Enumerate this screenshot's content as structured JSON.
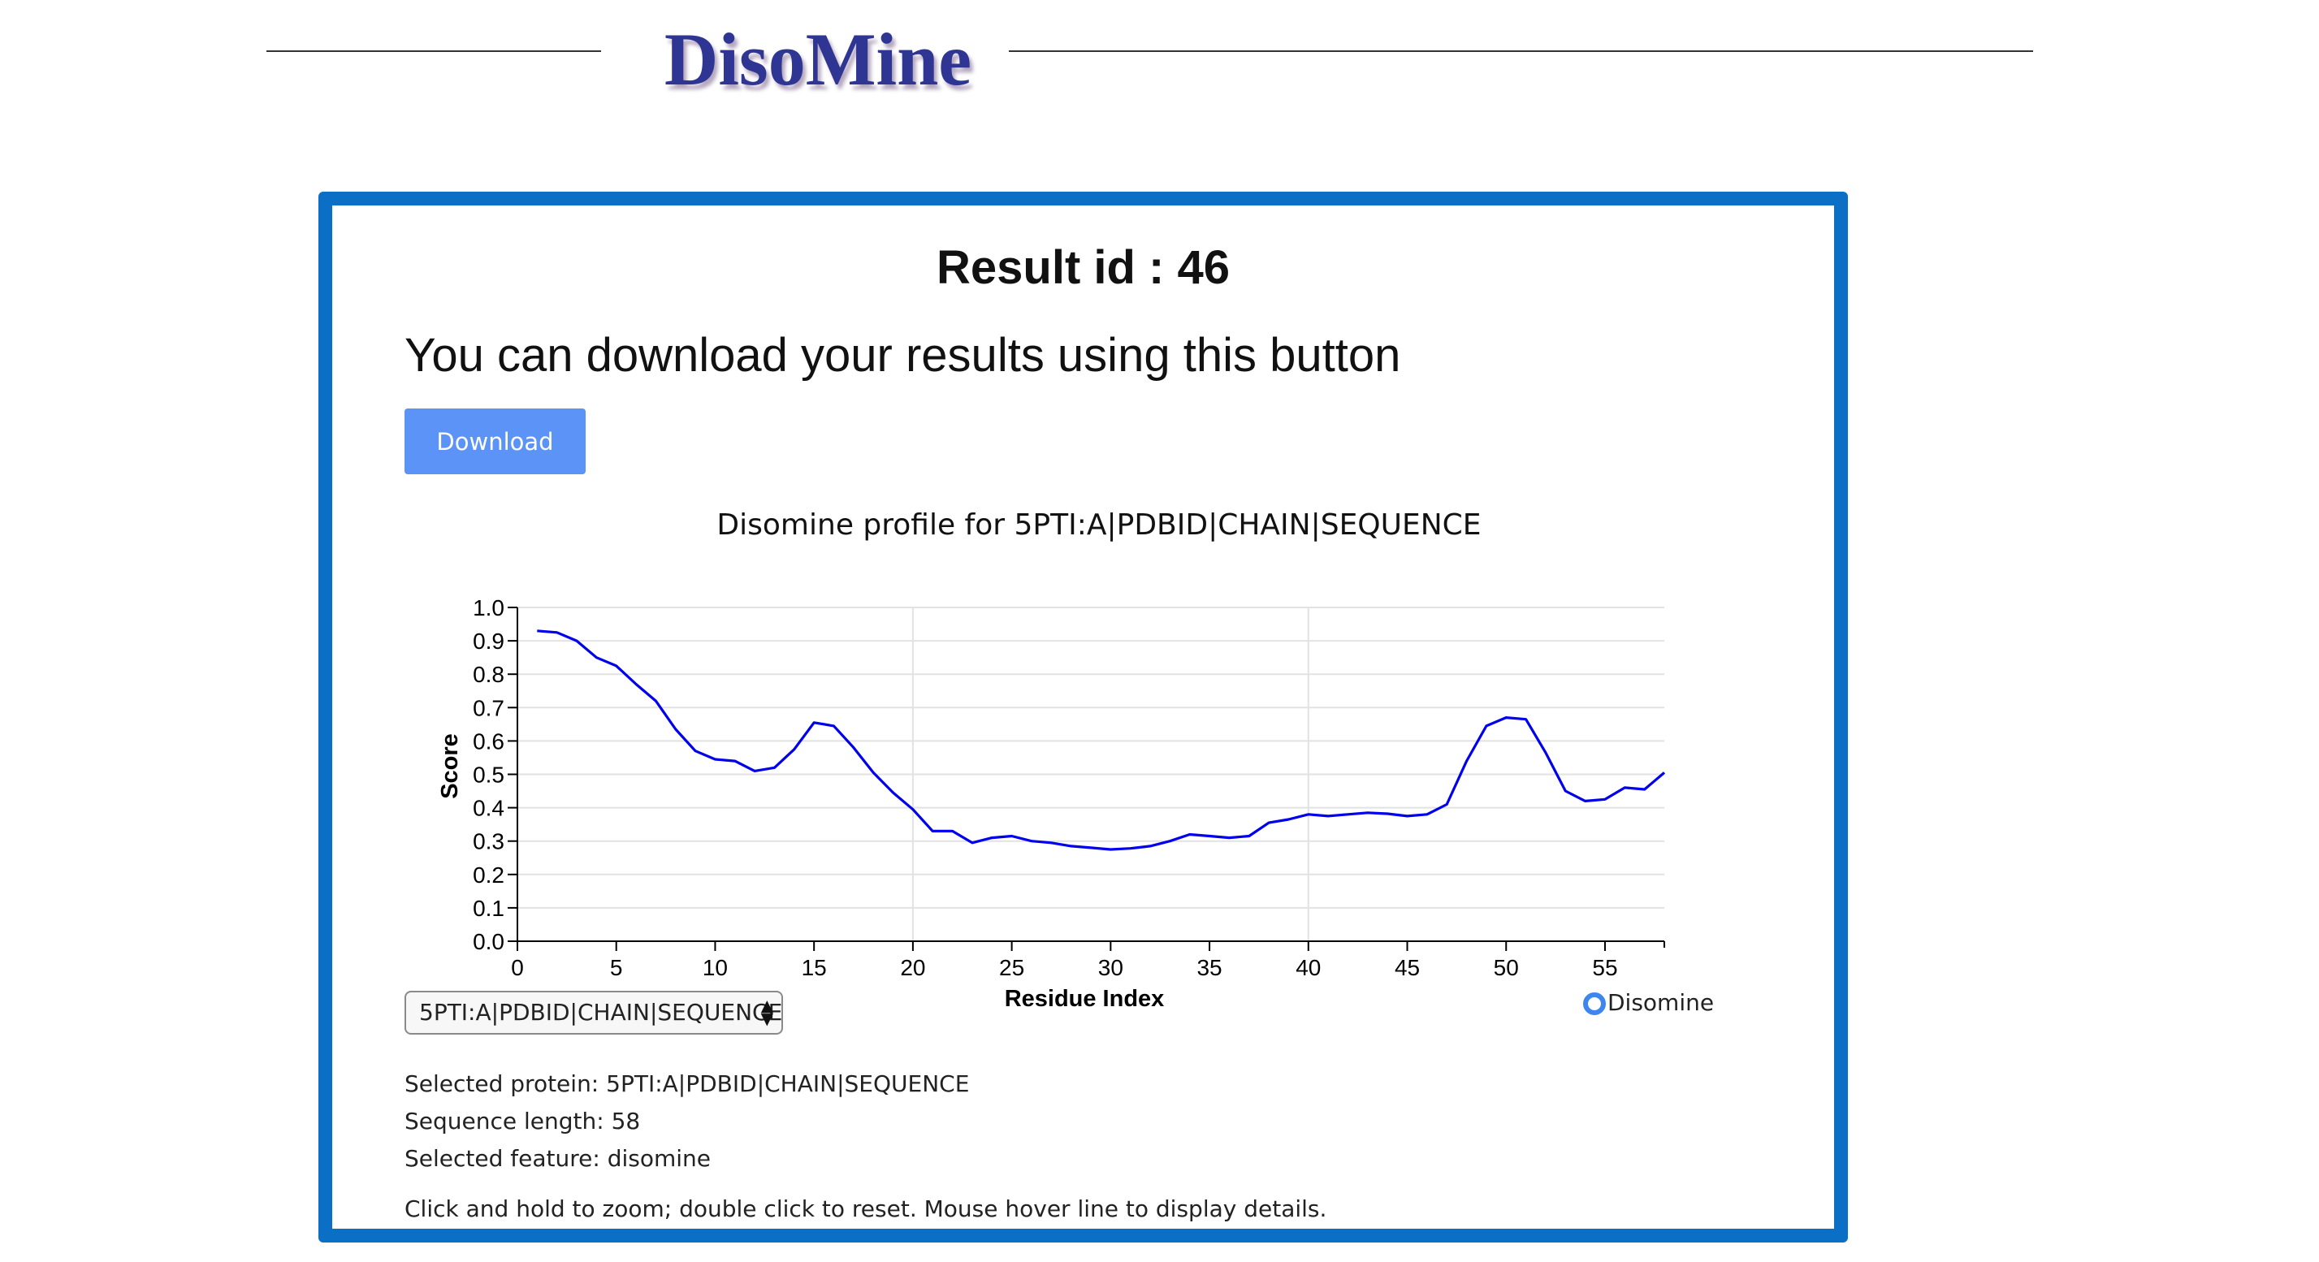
{
  "header": {
    "logo_text": "DisoMine"
  },
  "result": {
    "id_text": "Result id : 46",
    "intro_text": "You can download your results using this button",
    "download_label": "Download"
  },
  "chart_data": {
    "type": "line",
    "title": "Disomine profile for 5PTI:A|PDBID|CHAIN|SEQUENCE",
    "xlabel": "Residue Index",
    "ylabel": "Score",
    "xlim": [
      0,
      58
    ],
    "ylim": [
      0,
      1.0
    ],
    "xticks": [
      "0",
      "5",
      "10",
      "15",
      "20",
      "25",
      "30",
      "35",
      "40",
      "45",
      "50",
      "55"
    ],
    "yticks": [
      "0.0",
      "0.1",
      "0.2",
      "0.3",
      "0.4",
      "0.5",
      "0.6",
      "0.7",
      "0.8",
      "0.9",
      "1.0"
    ],
    "vertical_gridlines_at": [
      20,
      40
    ],
    "line_color": "#0000ee",
    "series": [
      {
        "name": "Disomine",
        "x": [
          1,
          2,
          3,
          4,
          5,
          6,
          7,
          8,
          9,
          10,
          11,
          12,
          13,
          14,
          15,
          16,
          17,
          18,
          19,
          20,
          21,
          22,
          23,
          24,
          25,
          26,
          27,
          28,
          29,
          30,
          31,
          32,
          33,
          34,
          35,
          36,
          37,
          38,
          39,
          40,
          41,
          42,
          43,
          44,
          45,
          46,
          47,
          48,
          49,
          50,
          51,
          52,
          53,
          54,
          55,
          56,
          57,
          58
        ],
        "y": [
          0.93,
          0.925,
          0.9,
          0.85,
          0.825,
          0.77,
          0.72,
          0.635,
          0.57,
          0.545,
          0.54,
          0.51,
          0.52,
          0.575,
          0.655,
          0.645,
          0.58,
          0.505,
          0.445,
          0.395,
          0.33,
          0.33,
          0.295,
          0.31,
          0.315,
          0.3,
          0.295,
          0.285,
          0.28,
          0.275,
          0.278,
          0.285,
          0.3,
          0.32,
          0.315,
          0.31,
          0.315,
          0.355,
          0.365,
          0.38,
          0.375,
          0.38,
          0.385,
          0.382,
          0.375,
          0.38,
          0.41,
          0.54,
          0.645,
          0.67,
          0.665,
          0.565,
          0.45,
          0.42,
          0.425,
          0.46,
          0.455,
          0.505
        ]
      }
    ],
    "legend": {
      "label": "Disomine",
      "color": "#3d86f0",
      "placement": "bottom-right"
    }
  },
  "controls": {
    "protein_select_value": "5PTI:A|PDBID|CHAIN|SEQUENCE"
  },
  "info": {
    "selected_protein": "Selected protein: 5PTI:A|PDBID|CHAIN|SEQUENCE",
    "sequence_length": "Sequence length: 58",
    "selected_feature": "Selected feature: disomine",
    "help_text": "Click and hold to zoom; double click to reset. Mouse hover line to display details."
  }
}
